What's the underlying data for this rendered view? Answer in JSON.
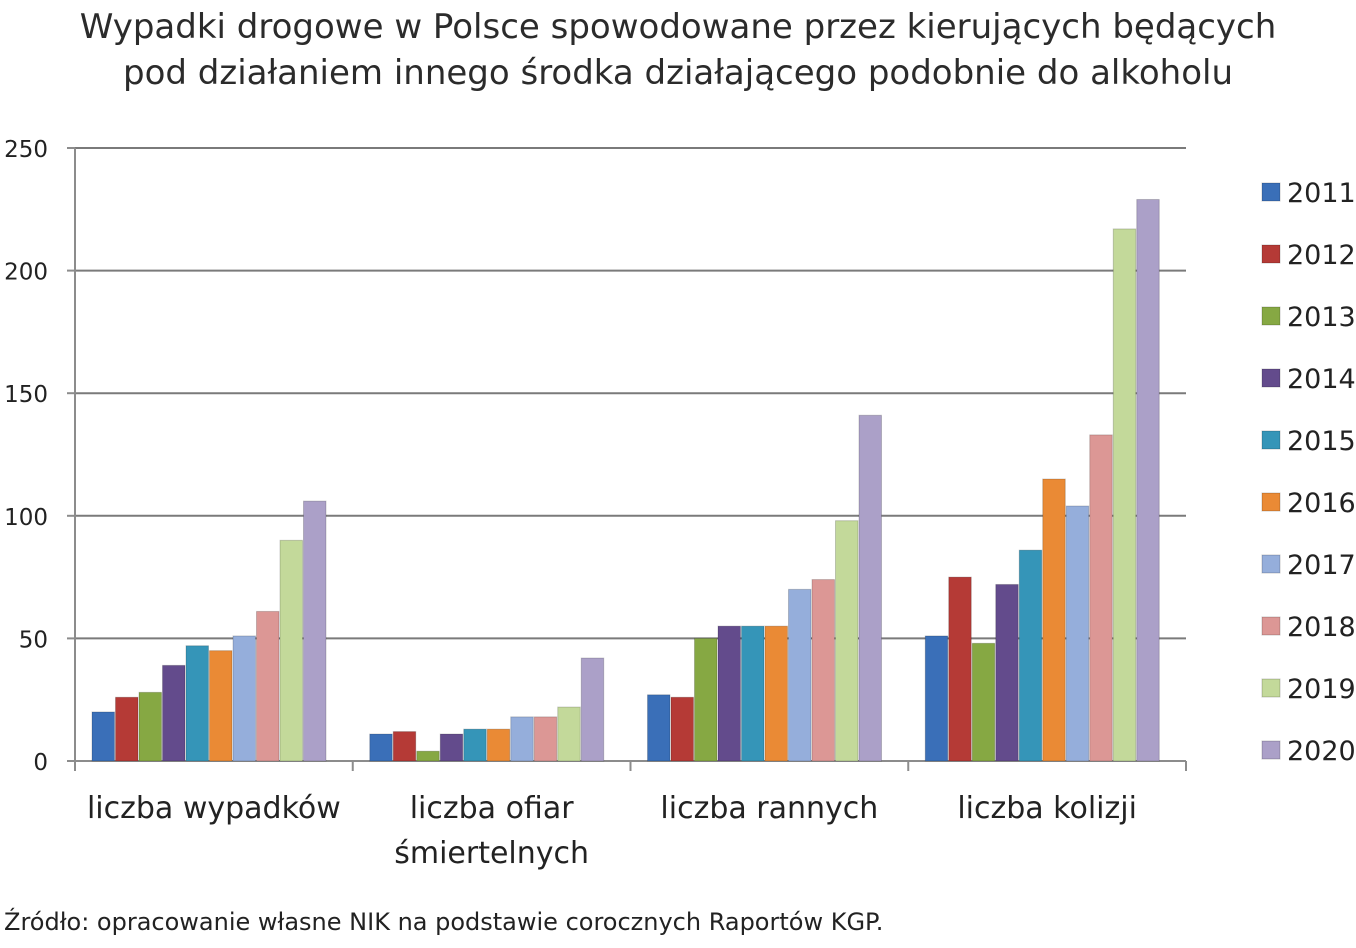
{
  "chart_data": {
    "type": "bar",
    "title": [
      "Wypadki drogowe w Polsce spowodowane przez kierujących będących",
      "pod działaniem innego środka działającego podobnie do alkoholu"
    ],
    "categories": [
      [
        "liczba wypadków"
      ],
      [
        "liczba ofiar",
        "śmiertelnych"
      ],
      [
        "liczba rannych"
      ],
      [
        "liczba kolizji"
      ]
    ],
    "y_ticks": [
      "0",
      "50",
      "100",
      "150",
      "200",
      "250"
    ],
    "ylim": [
      0,
      250
    ],
    "grid": true,
    "legend_position": "right",
    "series": [
      {
        "name": "2011",
        "color": "#3a6fb8",
        "values": [
          20,
          11,
          27,
          51
        ]
      },
      {
        "name": "2012",
        "color": "#b53a36",
        "values": [
          26,
          12,
          26,
          75
        ]
      },
      {
        "name": "2013",
        "color": "#86a843",
        "values": [
          28,
          4,
          50,
          48
        ]
      },
      {
        "name": "2014",
        "color": "#634b8c",
        "values": [
          39,
          11,
          55,
          72
        ]
      },
      {
        "name": "2015",
        "color": "#3595b8",
        "values": [
          47,
          13,
          55,
          86
        ]
      },
      {
        "name": "2016",
        "color": "#ea8a35",
        "values": [
          45,
          13,
          55,
          115
        ]
      },
      {
        "name": "2017",
        "color": "#95aedb",
        "values": [
          51,
          18,
          70,
          104
        ]
      },
      {
        "name": "2018",
        "color": "#dc9795",
        "values": [
          61,
          18,
          74,
          133
        ]
      },
      {
        "name": "2019",
        "color": "#c3d99a",
        "values": [
          90,
          22,
          98,
          217
        ]
      },
      {
        "name": "2020",
        "color": "#aba0c8",
        "values": [
          106,
          42,
          141,
          229
        ]
      }
    ]
  },
  "source": "Źródło: opracowanie własne NIK na podstawie corocznych Raportów KGP."
}
